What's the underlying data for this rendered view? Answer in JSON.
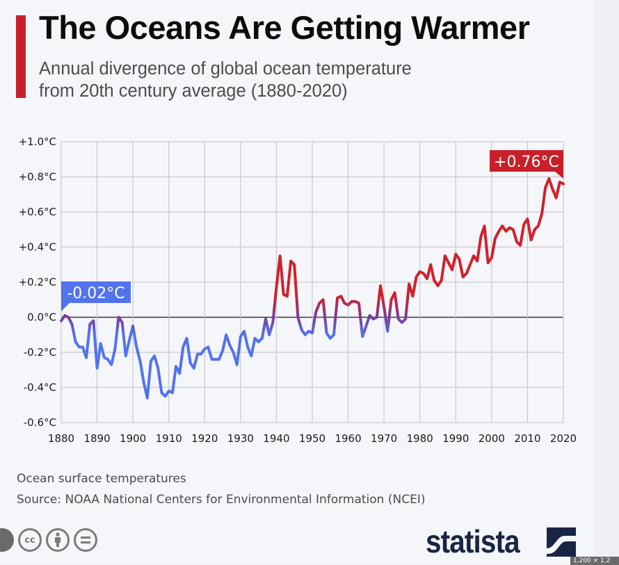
{
  "header": {
    "title": "The Oceans Are Getting Warmer",
    "subtitle_line1": "Annual divergence of global ocean temperature",
    "subtitle_line2": "from 20th century average (1880-2020)"
  },
  "footer": {
    "note": "Ocean surface temperatures",
    "source": "Source: NOAA National Centers for Environmental Information (NCEI)",
    "license_icons": [
      "cc-icon",
      "attribution-icon",
      "no-derivatives-icon"
    ],
    "brand": "statista",
    "size_badge": "1,200 × 1,2"
  },
  "colors": {
    "accent": "#c8202a",
    "warm": "#d0212b",
    "cool": "#5273ee",
    "brand": "#1a2445"
  },
  "chart_data": {
    "type": "line",
    "title": "The Oceans Are Getting Warmer",
    "xlabel": "",
    "ylabel": "",
    "xlim": [
      1880,
      2020
    ],
    "ylim": [
      -0.6,
      1.0
    ],
    "grid": true,
    "y_ticks": [
      -0.6,
      -0.4,
      -0.2,
      0.0,
      0.2,
      0.4,
      0.6,
      0.8,
      1.0
    ],
    "y_tick_labels": [
      "-0.6°C",
      "-0.4°C",
      "-0.2°C",
      "0.0°C",
      "+0.2°C",
      "+0.4°C",
      "+0.6°C",
      "+0.8°C",
      "+1.0°C"
    ],
    "x_ticks": [
      1880,
      1890,
      1900,
      1910,
      1920,
      1930,
      1940,
      1950,
      1960,
      1970,
      1980,
      1990,
      2000,
      2010,
      2020
    ],
    "x_tick_labels": [
      "1880",
      "1890",
      "1900",
      "1910",
      "1920",
      "1930",
      "1940",
      "1950",
      "1960",
      "1970",
      "1980",
      "1990",
      "2000",
      "2010",
      "2020"
    ],
    "annotations": [
      {
        "label": "-0.02°C",
        "year": 1880,
        "value": -0.02,
        "color": "#5273ee"
      },
      {
        "label": "+0.76°C",
        "year": 2020,
        "value": 0.76,
        "color": "#c8202a"
      }
    ],
    "series": [
      {
        "name": "Ocean temperature anomaly (°C)",
        "start_year": 1880,
        "values": [
          -0.02,
          0.01,
          0.0,
          -0.04,
          -0.14,
          -0.17,
          -0.17,
          -0.23,
          -0.04,
          -0.02,
          -0.29,
          -0.15,
          -0.23,
          -0.24,
          -0.27,
          -0.18,
          0.0,
          -0.03,
          -0.22,
          -0.13,
          -0.05,
          -0.17,
          -0.25,
          -0.37,
          -0.46,
          -0.25,
          -0.22,
          -0.29,
          -0.43,
          -0.45,
          -0.42,
          -0.43,
          -0.28,
          -0.32,
          -0.17,
          -0.12,
          -0.26,
          -0.29,
          -0.21,
          -0.21,
          -0.18,
          -0.17,
          -0.24,
          -0.24,
          -0.24,
          -0.19,
          -0.1,
          -0.16,
          -0.2,
          -0.27,
          -0.11,
          -0.08,
          -0.17,
          -0.22,
          -0.12,
          -0.14,
          -0.12,
          -0.01,
          -0.1,
          -0.03,
          0.17,
          0.35,
          0.13,
          0.12,
          0.32,
          0.3,
          0.0,
          -0.07,
          -0.1,
          -0.08,
          -0.09,
          0.03,
          0.08,
          0.1,
          -0.09,
          -0.12,
          -0.1,
          0.11,
          0.12,
          0.08,
          0.07,
          0.09,
          0.09,
          0.08,
          -0.11,
          -0.05,
          0.01,
          -0.01,
          0.0,
          0.18,
          0.06,
          -0.08,
          0.1,
          0.14,
          -0.01,
          -0.03,
          -0.01,
          0.19,
          0.12,
          0.23,
          0.26,
          0.25,
          0.22,
          0.3,
          0.21,
          0.18,
          0.21,
          0.35,
          0.31,
          0.27,
          0.36,
          0.33,
          0.23,
          0.25,
          0.3,
          0.35,
          0.32,
          0.46,
          0.52,
          0.31,
          0.34,
          0.45,
          0.49,
          0.52,
          0.49,
          0.51,
          0.5,
          0.43,
          0.41,
          0.53,
          0.56,
          0.44,
          0.5,
          0.52,
          0.59,
          0.74,
          0.79,
          0.73,
          0.68,
          0.77,
          0.76
        ]
      }
    ]
  }
}
